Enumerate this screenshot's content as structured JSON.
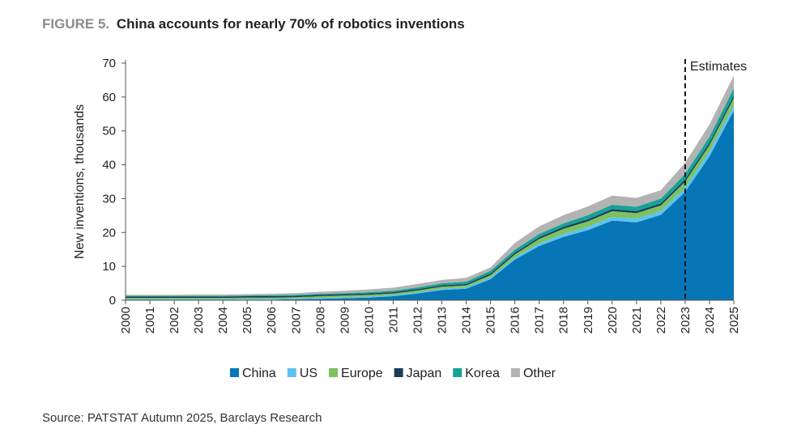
{
  "header": {
    "figure_label": "FIGURE 5.",
    "title": "China accounts for nearly 70% of robotics inventions"
  },
  "footer": {
    "source": "Source: PATSTAT Autumn 2025, Barclays Research"
  },
  "chart_data": {
    "type": "area",
    "stacked": true,
    "x": [
      "2000",
      "2001",
      "2002",
      "2003",
      "2004",
      "2005",
      "2006",
      "2007",
      "2008",
      "2009",
      "2010",
      "2011",
      "2012",
      "2013",
      "2014",
      "2015",
      "2016",
      "2017",
      "2018",
      "2019",
      "2020",
      "2021",
      "2022",
      "2023",
      "2024",
      "2025"
    ],
    "series": [
      {
        "name": "China",
        "color": "#0676b6",
        "values": [
          0.1,
          0.1,
          0.1,
          0.1,
          0.1,
          0.2,
          0.2,
          0.3,
          0.4,
          0.6,
          0.8,
          1.2,
          2.0,
          3.0,
          3.4,
          6.2,
          12.0,
          16.0,
          18.7,
          20.7,
          23.5,
          23.0,
          25.2,
          32.0,
          42.5,
          56.0
        ]
      },
      {
        "name": "US",
        "color": "#5ec2ee",
        "values": [
          0.2,
          0.2,
          0.2,
          0.2,
          0.2,
          0.2,
          0.2,
          0.2,
          0.3,
          0.3,
          0.3,
          0.3,
          0.3,
          0.4,
          0.4,
          0.5,
          0.6,
          0.8,
          0.9,
          1.0,
          1.1,
          1.1,
          1.2,
          1.3,
          1.5,
          1.7
        ]
      },
      {
        "name": "Europe",
        "color": "#7fc15d",
        "values": [
          0.4,
          0.4,
          0.4,
          0.4,
          0.4,
          0.4,
          0.4,
          0.4,
          0.5,
          0.5,
          0.5,
          0.5,
          0.6,
          0.6,
          0.6,
          0.7,
          0.9,
          1.3,
          1.5,
          1.6,
          1.7,
          1.6,
          1.6,
          1.7,
          1.8,
          2.0
        ]
      },
      {
        "name": "Japan",
        "color": "#173e5c",
        "values": [
          0.4,
          0.4,
          0.4,
          0.4,
          0.4,
          0.4,
          0.4,
          0.4,
          0.4,
          0.4,
          0.4,
          0.4,
          0.4,
          0.4,
          0.4,
          0.5,
          0.5,
          0.5,
          0.6,
          0.6,
          0.6,
          0.6,
          0.6,
          0.7,
          0.7,
          0.8
        ]
      },
      {
        "name": "Korea",
        "color": "#17a297",
        "values": [
          0.2,
          0.2,
          0.2,
          0.2,
          0.2,
          0.2,
          0.3,
          0.3,
          0.3,
          0.3,
          0.4,
          0.4,
          0.5,
          0.6,
          0.7,
          0.8,
          0.9,
          1.0,
          1.0,
          1.2,
          1.3,
          1.3,
          1.4,
          1.6,
          1.8,
          2.1
        ]
      },
      {
        "name": "Other",
        "color": "#b3b3b3",
        "values": [
          0.3,
          0.3,
          0.3,
          0.4,
          0.4,
          0.4,
          0.4,
          0.5,
          0.6,
          0.7,
          0.8,
          0.9,
          1.0,
          1.0,
          1.1,
          1.0,
          2.0,
          2.2,
          2.4,
          2.6,
          2.7,
          2.6,
          2.5,
          3.3,
          3.6,
          3.7
        ]
      }
    ],
    "ylabel": "New inventions, thousands",
    "xlabel": "",
    "ylim": [
      0,
      70
    ],
    "yticks": [
      0,
      10,
      20,
      30,
      40,
      50,
      60,
      70
    ],
    "grid": false,
    "legend": "bottom",
    "annotation": {
      "label": "Estimates",
      "x": "2023",
      "style": "dashed vertical line"
    }
  }
}
